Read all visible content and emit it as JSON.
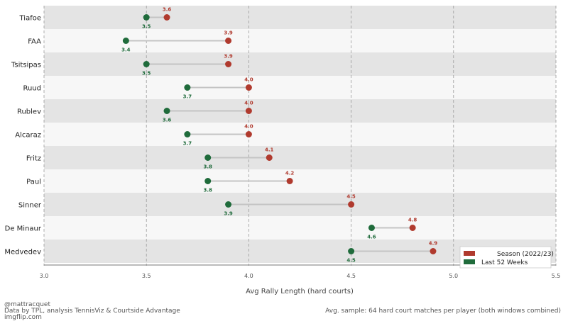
{
  "chart_data": {
    "type": "dumbbell",
    "xlabel": "Avg Rally Length  (hard courts)",
    "xlim": [
      3.0,
      5.5
    ],
    "xticks": [
      "3.0",
      "3.5",
      "4.0",
      "4.5",
      "5.0",
      "5.5"
    ],
    "xtick_values": [
      3.0,
      3.5,
      4.0,
      4.5,
      5.0,
      5.5
    ],
    "grid": "vertical dashed",
    "legend_position": "bottom-right",
    "series": [
      {
        "name": "Season (2022/23)",
        "color": "#b03a2e"
      },
      {
        "name": "Last 52 Weeks",
        "color": "#1f6b3b"
      }
    ],
    "players": [
      {
        "name": "Tiafoe",
        "season": 3.6,
        "last52": 3.5
      },
      {
        "name": "FAA",
        "season": 3.9,
        "last52": 3.4
      },
      {
        "name": "Tsitsipas",
        "season": 3.9,
        "last52": 3.5
      },
      {
        "name": "Ruud",
        "season": 4.0,
        "last52": 3.7
      },
      {
        "name": "Rublev",
        "season": 4.0,
        "last52": 3.6
      },
      {
        "name": "Alcaraz",
        "season": 4.0,
        "last52": 3.7
      },
      {
        "name": "Fritz",
        "season": 4.1,
        "last52": 3.8
      },
      {
        "name": "Paul",
        "season": 4.2,
        "last52": 3.8
      },
      {
        "name": "Sinner",
        "season": 4.5,
        "last52": 3.9
      },
      {
        "name": "De Minaur",
        "season": 4.8,
        "last52": 4.6
      },
      {
        "name": "Medvedev",
        "season": 4.9,
        "last52": 4.5
      }
    ]
  },
  "footer": {
    "handle": "@mattracquet",
    "site": "imgflip.com",
    "source": "Data by TPL, analysis TennisViz & Courtside Advantage",
    "sample_note": "Avg. sample: 64 hard court matches per player (both windows combined)"
  },
  "colors": {
    "band_dark": "#e4e4e4",
    "band_light": "#f7f7f7",
    "connector": "#c4c4c4",
    "grid": "#9a9a9a"
  }
}
